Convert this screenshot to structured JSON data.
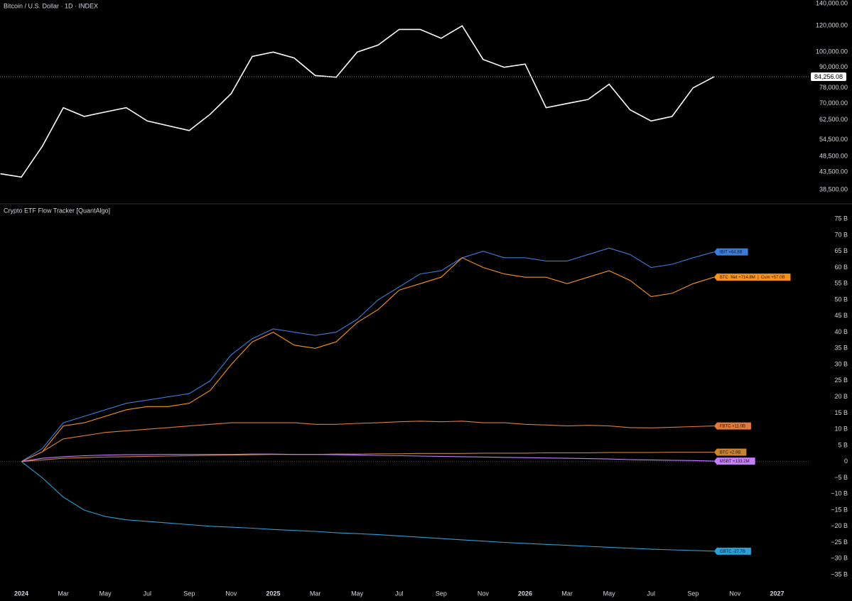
{
  "chart_data": [
    {
      "type": "line",
      "title": "Bitcoin / U.S. Dollar · 1D · INDEX",
      "log_y": true,
      "x": [
        "2023-12",
        "2024-01",
        "2024-02",
        "2024-03",
        "2024-04",
        "2024-05",
        "2024-06",
        "2024-07",
        "2024-08",
        "2024-09",
        "2024-10",
        "2024-11",
        "2024-12",
        "2025-01",
        "2025-02",
        "2025-03",
        "2025-04",
        "2025-05",
        "2025-06",
        "2025-07",
        "2025-08",
        "2025-09",
        "2025-10",
        "2025-11",
        "2025-12",
        "2026-01",
        "2026-02",
        "2026-03",
        "2026-04",
        "2026-05",
        "2026-06",
        "2026-07",
        "2026-08",
        "2026-09",
        "2026-10"
      ],
      "series": [
        {
          "color": "#ffffff",
          "values": [
            43000,
            42000,
            52000,
            68000,
            64000,
            66000,
            68000,
            62000,
            60000,
            58000,
            65000,
            75000,
            97000,
            100000,
            96000,
            85000,
            84000,
            100000,
            105000,
            117000,
            117000,
            110000,
            120000,
            95000,
            90000,
            92000,
            68000,
            70000,
            72000,
            80000,
            67000,
            62000,
            64000,
            78000,
            84256.08
          ],
          "value_labels": [
            null,
            null,
            null,
            null,
            null,
            null,
            null,
            null,
            null,
            null,
            null,
            null,
            null,
            null,
            null,
            null,
            null,
            null,
            null,
            null,
            null,
            null,
            null,
            null,
            null,
            null,
            null,
            null,
            null,
            null,
            null,
            null,
            null,
            null,
            "84,256.08"
          ]
        }
      ],
      "ylim": [
        35230,
        143500
      ],
      "yticks": [
        {
          "value": 140000,
          "label": "140,000.00"
        },
        {
          "value": 120000,
          "label": "120,000.00"
        },
        {
          "value": 100000,
          "label": "100,000.00"
        },
        {
          "value": 90000,
          "label": "90,000.00"
        },
        {
          "value": 78000,
          "label": "78,000.00"
        },
        {
          "value": 70000,
          "label": "70,000.00"
        },
        {
          "value": 62500,
          "label": "62,500.00"
        },
        {
          "value": 54500,
          "label": "54,500.00"
        },
        {
          "value": 48500,
          "label": "48,500.00"
        },
        {
          "value": 43500,
          "label": "43,500.00"
        },
        {
          "value": 38500,
          "label": "38,500.00"
        }
      ]
    },
    {
      "type": "line",
      "title": "Crypto ETF Flow Tracker [QuantAlgo]",
      "zero_line": true,
      "x": [
        "2023-12",
        "2024-01",
        "2024-02",
        "2024-03",
        "2024-04",
        "2024-05",
        "2024-06",
        "2024-07",
        "2024-08",
        "2024-09",
        "2024-10",
        "2024-11",
        "2024-12",
        "2025-01",
        "2025-02",
        "2025-03",
        "2025-04",
        "2025-05",
        "2025-06",
        "2025-07",
        "2025-08",
        "2025-09",
        "2025-10",
        "2025-11",
        "2025-12",
        "2026-01",
        "2026-02",
        "2026-03",
        "2026-04",
        "2026-05",
        "2026-06",
        "2026-07",
        "2026-08",
        "2026-09",
        "2026-10"
      ],
      "series": [
        {
          "name": "IBIT +64.8B",
          "color": "#3d7bd9",
          "values": [
            null,
            0,
            4,
            12,
            14,
            16,
            18,
            19,
            20,
            21,
            25,
            33,
            38,
            41,
            40,
            39,
            40,
            44,
            50,
            54,
            58,
            59,
            63,
            65,
            63,
            63,
            62,
            62,
            64,
            66,
            64,
            60,
            61,
            63,
            64.8
          ]
        },
        {
          "name": "BTC  Net +714.8M  |  Cum +57.0B",
          "color": "#f7931a",
          "values": [
            null,
            0,
            3,
            11,
            12,
            14,
            16,
            17,
            17,
            18,
            22,
            30,
            37,
            40,
            36,
            35,
            37,
            43,
            47,
            53,
            55,
            57,
            63,
            60,
            58,
            57,
            57,
            55,
            57,
            59,
            56,
            51,
            52,
            55,
            57.0
          ]
        },
        {
          "name": "FBTC +11.0B",
          "color": "#e07a3a",
          "values": [
            null,
            0,
            3,
            7,
            8,
            9,
            9.5,
            10,
            10.5,
            11,
            11.5,
            12,
            12,
            12,
            12,
            11.5,
            11.5,
            11.8,
            12,
            12.3,
            12.5,
            12.3,
            12.5,
            12,
            12,
            11.5,
            11.3,
            11,
            11.2,
            11,
            10.5,
            10.4,
            10.6,
            10.8,
            11.0
          ]
        },
        {
          "name": "BTC +2.9B",
          "color": "#c9822f",
          "values": [
            null,
            0,
            0.5,
            1,
            1.2,
            1.4,
            1.5,
            1.6,
            1.7,
            1.8,
            1.9,
            2,
            2.1,
            2.2,
            2.2,
            2.2,
            2.3,
            2.3,
            2.4,
            2.4,
            2.5,
            2.5,
            2.5,
            2.6,
            2.6,
            2.6,
            2.7,
            2.7,
            2.7,
            2.8,
            2.8,
            2.8,
            2.9,
            2.9,
            2.9
          ]
        },
        {
          "name": "MSBT +133.2M",
          "color": "#c77dff",
          "values": [
            null,
            0,
            1,
            1.5,
            1.8,
            2,
            2.1,
            2.1,
            2.2,
            2.2,
            2.2,
            2.2,
            2.3,
            2.3,
            2.2,
            2.2,
            2.1,
            2.0,
            1.9,
            1.8,
            1.7,
            1.6,
            1.5,
            1.4,
            1.3,
            1.2,
            1.1,
            1.0,
            0.9,
            0.8,
            0.6,
            0.5,
            0.4,
            0.3,
            0.1332
          ]
        },
        {
          "name": "GBTC -27.7B",
          "color": "#2b9fd6",
          "values": [
            null,
            0,
            -5,
            -11,
            -15,
            -17,
            -18,
            -18.5,
            -19,
            -19.5,
            -20,
            -20.3,
            -20.6,
            -21,
            -21.3,
            -21.6,
            -22,
            -22.3,
            -22.6,
            -23,
            -23.4,
            -23.8,
            -24.2,
            -24.6,
            -25,
            -25.3,
            -25.6,
            -25.9,
            -26.2,
            -26.5,
            -26.8,
            -27.1,
            -27.3,
            -27.5,
            -27.7
          ]
        }
      ],
      "ylim": [
        -39.6,
        79
      ],
      "yticks": [
        {
          "value": 75,
          "label": "75 B"
        },
        {
          "value": 70,
          "label": "70 B"
        },
        {
          "value": 65,
          "label": "65 B"
        },
        {
          "value": 60,
          "label": "60 B"
        },
        {
          "value": 55,
          "label": "55 B"
        },
        {
          "value": 50,
          "label": "50 B"
        },
        {
          "value": 45,
          "label": "45 B"
        },
        {
          "value": 40,
          "label": "40 B"
        },
        {
          "value": 35,
          "label": "35 B"
        },
        {
          "value": 30,
          "label": "30 B"
        },
        {
          "value": 25,
          "label": "25 B"
        },
        {
          "value": 20,
          "label": "20 B"
        },
        {
          "value": 15,
          "label": "15 B"
        },
        {
          "value": 10,
          "label": "10 B"
        },
        {
          "value": 5,
          "label": "5 B"
        },
        0,
        {
          "value": -5,
          "label": "−5 B"
        },
        {
          "value": -10,
          "label": "−10 B"
        },
        {
          "value": -15,
          "label": "−15 B"
        },
        {
          "value": -20,
          "label": "−20 B"
        },
        {
          "value": -25,
          "label": "−25 B"
        },
        {
          "value": -30,
          "label": "−30 B"
        },
        {
          "value": -35,
          "label": "−35 B"
        }
      ],
      "xticks": [
        {
          "value": "2024-01",
          "label": "2024"
        },
        {
          "value": "2024-03",
          "label": "Mar"
        },
        {
          "value": "2024-05",
          "label": "May"
        },
        {
          "value": "2024-07",
          "label": "Jul"
        },
        {
          "value": "2024-09",
          "label": "Sep"
        },
        {
          "value": "2024-11",
          "label": "Nov"
        },
        {
          "value": "2025-01",
          "label": "2025"
        },
        {
          "value": "2025-03",
          "label": "Mar"
        },
        {
          "value": "2025-05",
          "label": "May"
        },
        {
          "value": "2025-07",
          "label": "Jul"
        },
        {
          "value": "2025-09",
          "label": "Sep"
        },
        {
          "value": "2025-11",
          "label": "Nov"
        },
        {
          "value": "2026-01",
          "label": "2026"
        },
        {
          "value": "2026-03",
          "label": "Mar"
        },
        {
          "value": "2026-05",
          "label": "May"
        },
        {
          "value": "2026-07",
          "label": "Jul"
        },
        {
          "value": "2026-09",
          "label": "Sep"
        },
        {
          "value": "2026-11",
          "label": "Nov"
        },
        {
          "value": "2027-01",
          "label": "2027"
        }
      ]
    }
  ]
}
